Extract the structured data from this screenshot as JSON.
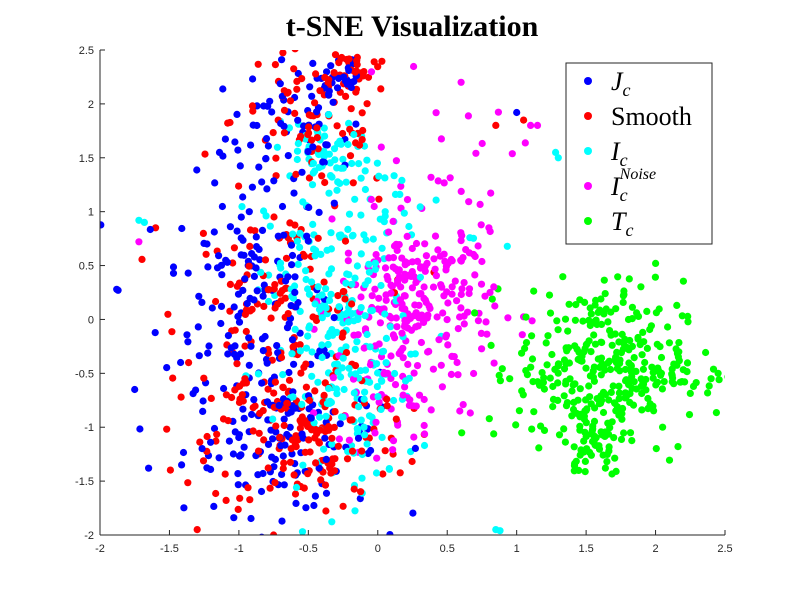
{
  "chart_data": {
    "type": "scatter",
    "title": "t-SNE Visualization",
    "xlabel": "",
    "ylabel": "",
    "xlim": [
      -2,
      2.5
    ],
    "ylim": [
      -2,
      2.5
    ],
    "xticks": [
      "-2",
      "-1.5",
      "-1",
      "-0.5",
      "0",
      "0.5",
      "1",
      "1.5",
      "2",
      "2.5"
    ],
    "yticks": [
      "-2",
      "-1.5",
      "-1",
      "-0.5",
      "0",
      "0.5",
      "1",
      "1.5",
      "2",
      "2.5"
    ],
    "grid": false,
    "legend_position": "top-right",
    "series": [
      {
        "name": "J_c",
        "legend_base": "J",
        "legend_sub": "c",
        "legend_sup": "",
        "color": "#0000ff",
        "clusters": [
          {
            "cx": -0.6,
            "cy": 1.7,
            "sx": 0.25,
            "sy": 0.35,
            "n": 70
          },
          {
            "cx": -0.95,
            "cy": 0.3,
            "sx": 0.3,
            "sy": 0.5,
            "n": 120
          },
          {
            "cx": -0.7,
            "cy": -1.1,
            "sx": 0.35,
            "sy": 0.35,
            "n": 140
          },
          {
            "cx": -0.3,
            "cy": 2.25,
            "sx": 0.12,
            "sy": 0.15,
            "n": 25
          }
        ],
        "points": [
          {
            "x": -1.88,
            "y": 0.28
          },
          {
            "x": -1.87,
            "y": 0.27
          },
          {
            "x": 1.0,
            "y": 1.92
          },
          {
            "x": -1.75,
            "y": -0.65
          },
          {
            "x": -1.65,
            "y": -1.38
          }
        ]
      },
      {
        "name": "Smooth",
        "legend_base": "Smooth",
        "legend_sub": "",
        "legend_sup": "",
        "color": "#ff0000",
        "clusters": [
          {
            "cx": -0.45,
            "cy": 1.85,
            "sx": 0.3,
            "sy": 0.35,
            "n": 80
          },
          {
            "cx": -0.7,
            "cy": 0.0,
            "sx": 0.35,
            "sy": 0.55,
            "n": 150
          },
          {
            "cx": -0.5,
            "cy": -1.1,
            "sx": 0.35,
            "sy": 0.35,
            "n": 140
          },
          {
            "cx": -0.25,
            "cy": 2.3,
            "sx": 0.1,
            "sy": 0.12,
            "n": 25
          }
        ],
        "points": [
          {
            "x": -1.6,
            "y": 0.85
          },
          {
            "x": -1.3,
            "y": -1.95
          },
          {
            "x": -0.75,
            "y": -2.0
          },
          {
            "x": 0.85,
            "y": 1.8
          },
          {
            "x": 1.05,
            "y": 1.85
          }
        ]
      },
      {
        "name": "I_c",
        "legend_base": "I",
        "legend_sub": "c",
        "legend_sup": "",
        "color": "#00ffff",
        "clusters": [
          {
            "cx": -0.45,
            "cy": 1.55,
            "sx": 0.15,
            "sy": 0.15,
            "n": 50
          },
          {
            "cx": -0.3,
            "cy": 0.2,
            "sx": 0.25,
            "sy": 0.55,
            "n": 150
          },
          {
            "cx": -0.2,
            "cy": -0.7,
            "sx": 0.25,
            "sy": 0.45,
            "n": 110
          },
          {
            "cx": 0.15,
            "cy": 1.0,
            "sx": 0.3,
            "sy": 0.3,
            "n": 30
          }
        ],
        "points": [
          {
            "x": -1.72,
            "y": 0.92
          },
          {
            "x": -1.68,
            "y": 0.9
          },
          {
            "x": 0.85,
            "y": -1.95
          },
          {
            "x": 0.88,
            "y": -1.96
          },
          {
            "x": 1.3,
            "y": 1.5
          },
          {
            "x": 1.28,
            "y": 1.55
          }
        ]
      },
      {
        "name": "I_c^Noise",
        "legend_base": "I",
        "legend_sub": "c",
        "legend_sup": "Noise",
        "color": "#ff00ff",
        "clusters": [
          {
            "cx": 0.28,
            "cy": 0.15,
            "sx": 0.28,
            "sy": 0.4,
            "n": 240
          },
          {
            "cx": 0.1,
            "cy": -0.8,
            "sx": 0.25,
            "sy": 0.35,
            "n": 40
          },
          {
            "cx": 0.4,
            "cy": 1.3,
            "sx": 0.3,
            "sy": 0.4,
            "n": 25
          }
        ],
        "points": [
          {
            "x": 0.6,
            "y": 2.2
          },
          {
            "x": 1.1,
            "y": 1.8
          },
          {
            "x": 1.15,
            "y": 1.8
          },
          {
            "x": -1.72,
            "y": 0.72
          },
          {
            "x": 0.8,
            "y": 0.85
          }
        ]
      },
      {
        "name": "T_c",
        "legend_base": "T",
        "legend_sub": "c",
        "legend_sup": "",
        "color": "#00ff00",
        "clusters": [
          {
            "cx": 1.6,
            "cy": -0.45,
            "sx": 0.3,
            "sy": 0.4,
            "n": 320
          },
          {
            "cx": 1.55,
            "cy": -1.15,
            "sx": 0.12,
            "sy": 0.15,
            "n": 40
          },
          {
            "cx": 2.2,
            "cy": -0.5,
            "sx": 0.15,
            "sy": 0.15,
            "n": 25
          }
        ],
        "points": [
          {
            "x": 2.0,
            "y": 0.52
          },
          {
            "x": 2.45,
            "y": -0.5
          },
          {
            "x": 0.95,
            "y": -0.55
          },
          {
            "x": 2.4,
            "y": -0.55
          }
        ]
      }
    ]
  }
}
